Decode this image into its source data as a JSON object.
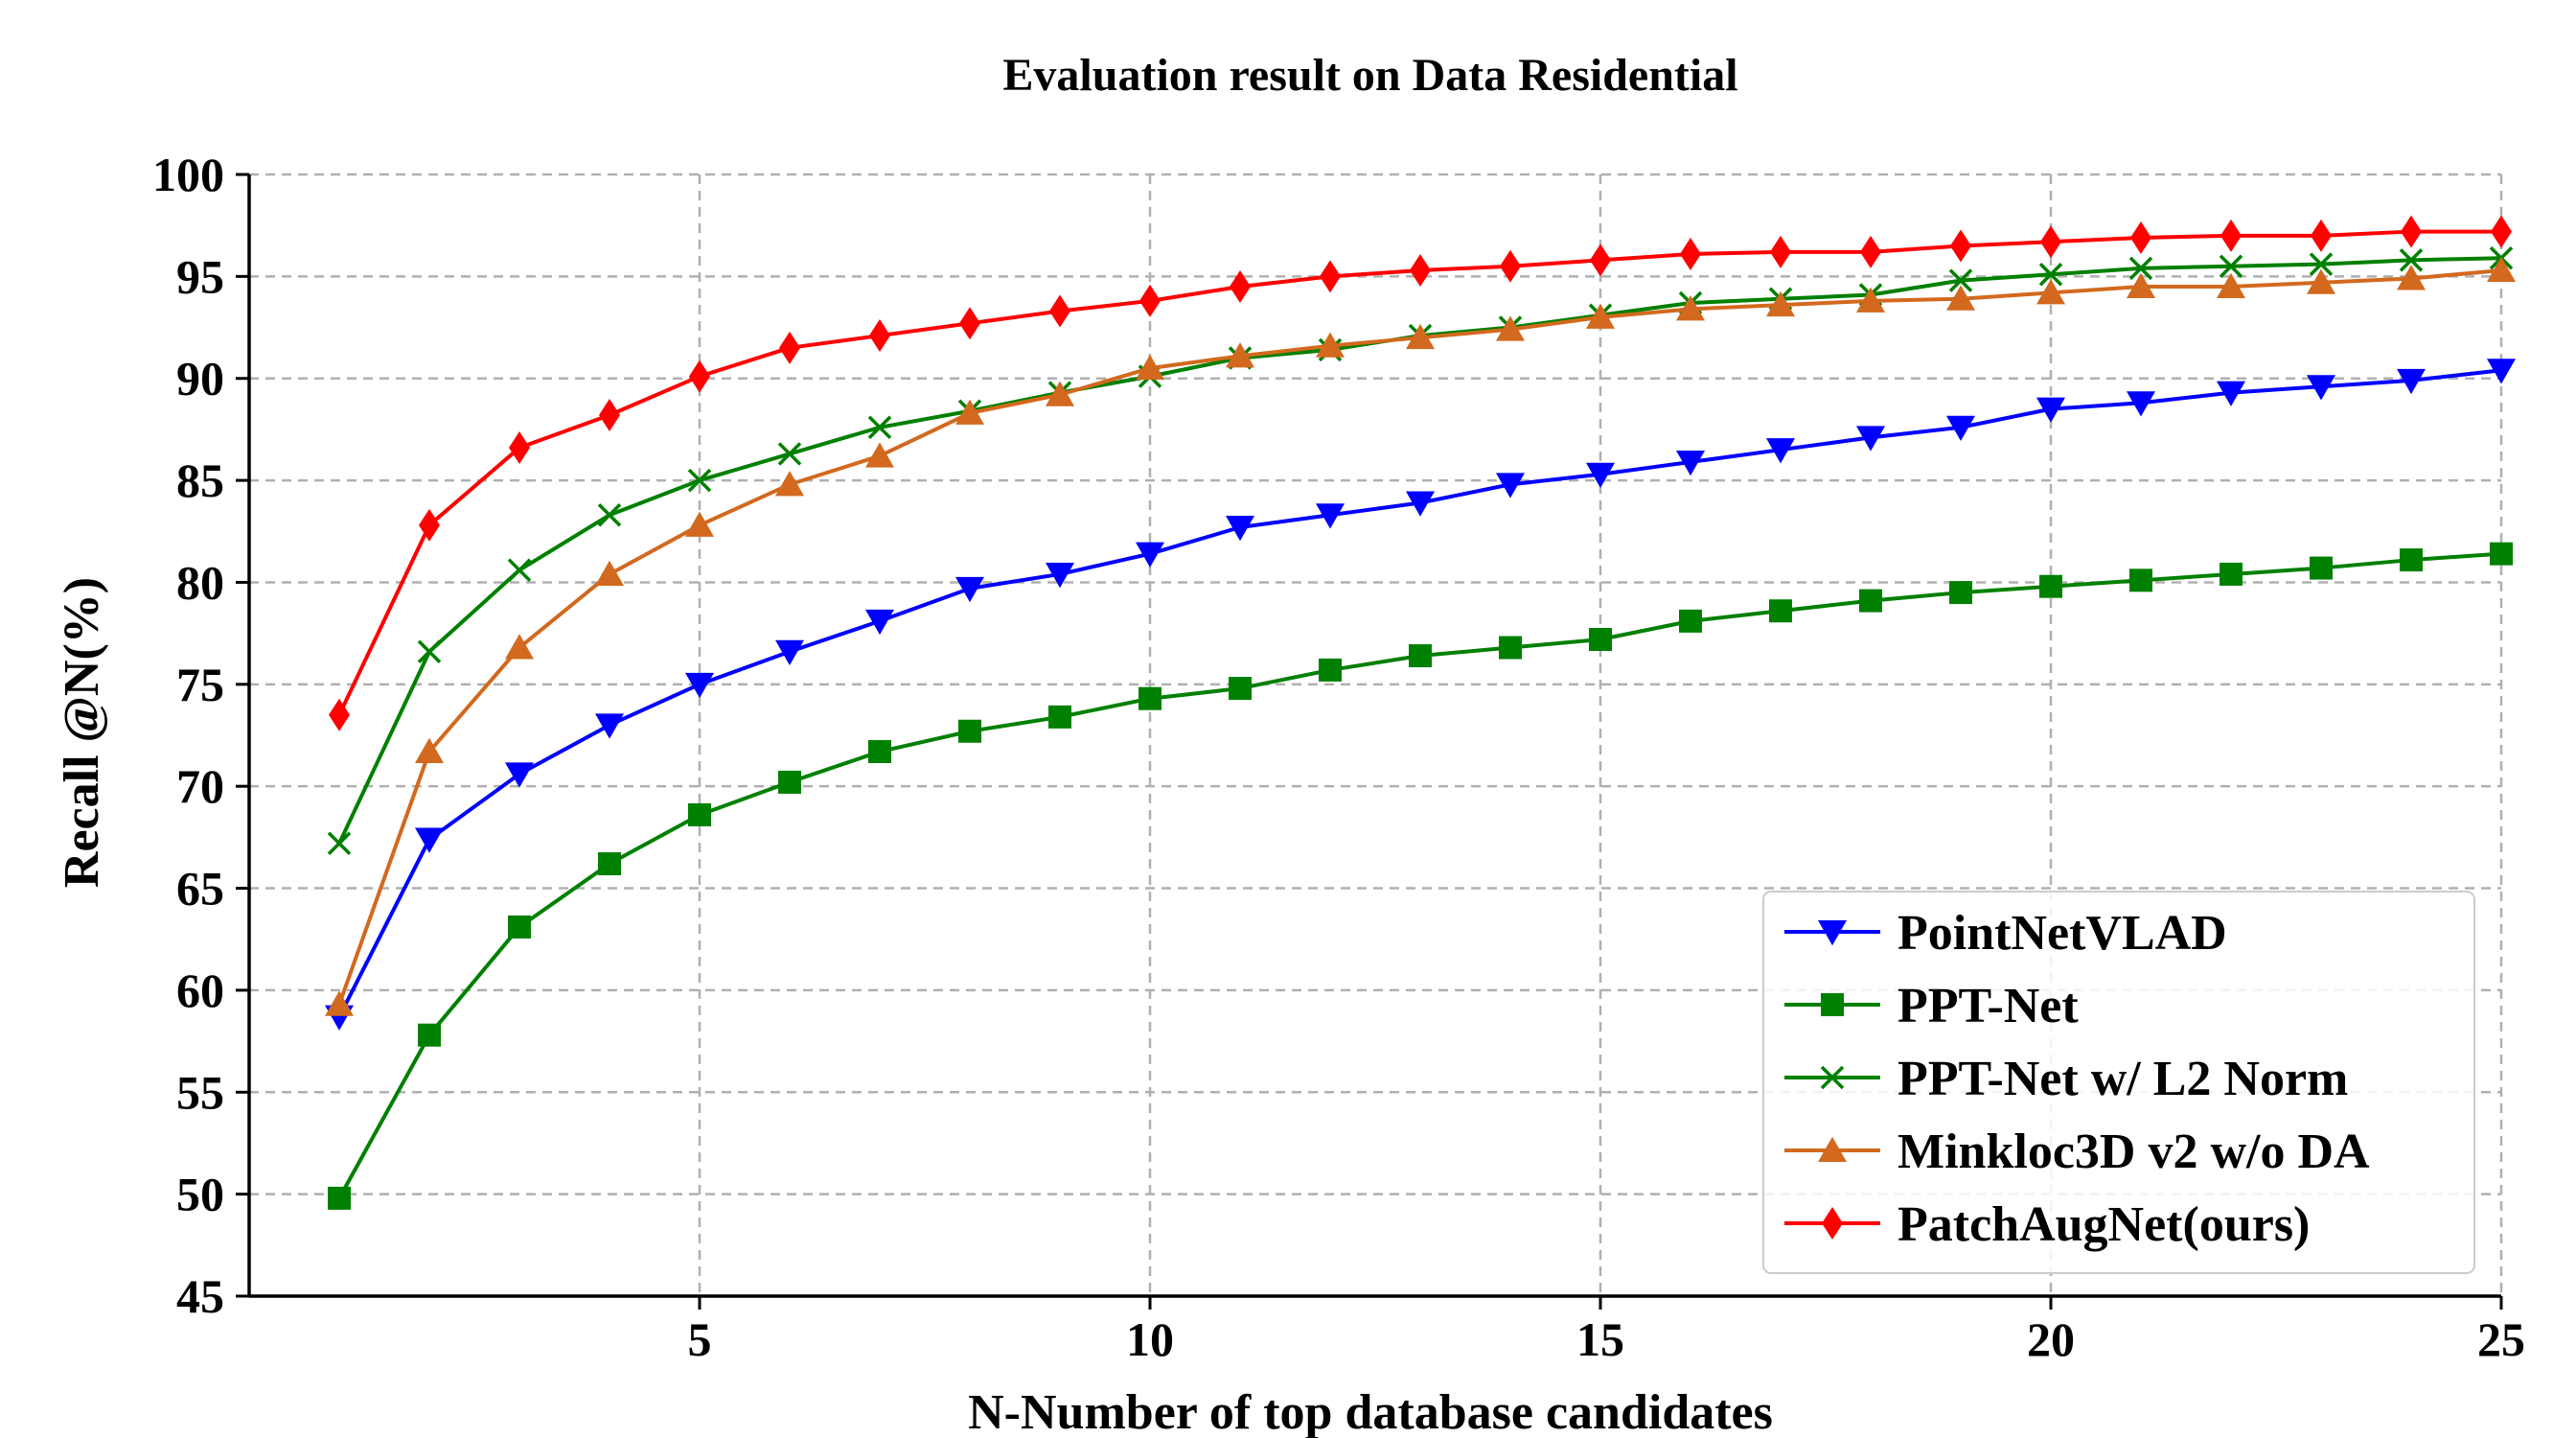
{
  "chart_data": {
    "type": "line",
    "title": "Evaluation result on Data Residential",
    "xlabel": "N-Number of top database candidates",
    "ylabel": "Recall @N(%)",
    "xlim": [
      0,
      25
    ],
    "ylim": [
      45,
      100
    ],
    "xticks": [
      5,
      10,
      15,
      20,
      25
    ],
    "yticks": [
      45,
      50,
      55,
      60,
      65,
      70,
      75,
      80,
      85,
      90,
      95,
      100
    ],
    "grid": true,
    "legend_position": "lower-right",
    "x": [
      1,
      2,
      3,
      4,
      5,
      6,
      7,
      8,
      9,
      10,
      11,
      12,
      13,
      14,
      15,
      16,
      17,
      18,
      19,
      20,
      21,
      22,
      23,
      24,
      25
    ],
    "series": [
      {
        "name": "PointNetVLAD",
        "color": "#0000ff",
        "marker": "triangle-down",
        "values": [
          58.7,
          67.4,
          70.6,
          73.0,
          75.0,
          76.6,
          78.1,
          79.7,
          80.4,
          81.4,
          82.7,
          83.3,
          83.9,
          84.8,
          85.3,
          85.9,
          86.5,
          87.1,
          87.6,
          88.5,
          88.8,
          89.3,
          89.6,
          89.9,
          90.4
        ]
      },
      {
        "name": "PPT-Net",
        "color": "#008000",
        "marker": "square",
        "values": [
          49.8,
          57.8,
          63.1,
          66.2,
          68.6,
          70.2,
          71.7,
          72.7,
          73.4,
          74.3,
          74.8,
          75.7,
          76.4,
          76.8,
          77.2,
          78.1,
          78.6,
          79.1,
          79.5,
          79.8,
          80.1,
          80.4,
          80.7,
          81.1,
          81.4
        ]
      },
      {
        "name": "PPT-Net w/ L2 Norm",
        "color": "#008000",
        "marker": "x",
        "values": [
          67.2,
          76.6,
          80.6,
          83.3,
          85.0,
          86.3,
          87.6,
          88.4,
          89.3,
          90.1,
          91.0,
          91.4,
          92.1,
          92.5,
          93.1,
          93.7,
          93.9,
          94.1,
          94.8,
          95.1,
          95.4,
          95.5,
          95.6,
          95.8,
          95.9
        ]
      },
      {
        "name": "Minkloc3D v2 w/o DA",
        "color": "#d2691e",
        "marker": "triangle-up",
        "values": [
          59.3,
          71.7,
          76.8,
          80.4,
          82.8,
          84.8,
          86.2,
          88.3,
          89.2,
          90.5,
          91.1,
          91.6,
          92.0,
          92.4,
          93.0,
          93.4,
          93.6,
          93.8,
          93.9,
          94.2,
          94.5,
          94.5,
          94.7,
          94.9,
          95.3
        ]
      },
      {
        "name": "PatchAugNet(ours)",
        "color": "#ff0000",
        "marker": "diamond",
        "values": [
          73.5,
          82.8,
          86.6,
          88.2,
          90.1,
          91.5,
          92.1,
          92.7,
          93.3,
          93.8,
          94.5,
          95.0,
          95.3,
          95.5,
          95.8,
          96.1,
          96.2,
          96.2,
          96.5,
          96.7,
          96.9,
          97.0,
          97.0,
          97.2,
          97.2
        ]
      }
    ]
  }
}
